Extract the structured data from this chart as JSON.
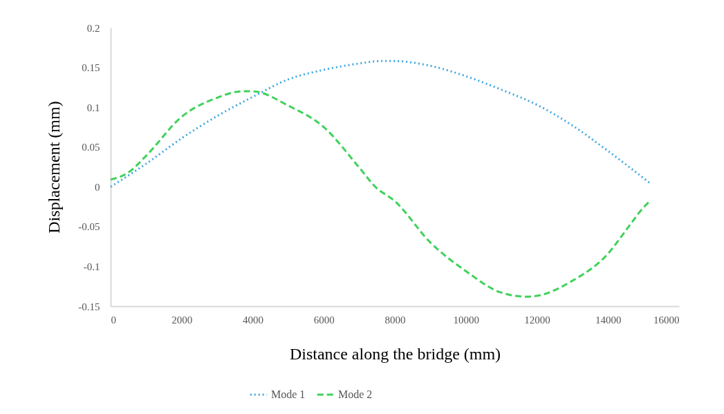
{
  "chart_data": {
    "type": "line",
    "xlabel": "Distance along the bridge (mm)",
    "ylabel": "Displacement (mm)",
    "xlim": [
      0,
      16000
    ],
    "xticks": [
      0,
      2000,
      4000,
      6000,
      8000,
      10000,
      12000,
      14000,
      16000
    ],
    "ylim": [
      -0.15,
      0.2
    ],
    "yticks": [
      -0.15,
      -0.1,
      -0.05,
      0,
      0.05,
      0.1,
      0.15,
      0.2
    ],
    "grid": false,
    "legend": "bottom",
    "marker": "none",
    "series": [
      {
        "name": "Mode 1",
        "color": "#41a8e0",
        "line_style": "dotted",
        "x": [
          0,
          1000,
          2000,
          3000,
          4000,
          5000,
          6000,
          7000,
          7600,
          8000,
          9000,
          10000,
          11000,
          12000,
          13000,
          14000,
          15200
        ],
        "values": [
          0,
          0.029,
          0.061,
          0.089,
          0.113,
          0.135,
          0.147,
          0.155,
          0.158,
          0.158,
          0.152,
          0.139,
          0.122,
          0.103,
          0.077,
          0.045,
          0.004
        ]
      },
      {
        "name": "Mode 2",
        "color": "#3fd15a",
        "line_style": "dashed",
        "x": [
          0,
          500,
          1000,
          2000,
          3000,
          3700,
          4000,
          5000,
          6000,
          7000,
          7450,
          8000,
          9000,
          10000,
          11000,
          11700,
          12000,
          13000,
          14000,
          14500,
          15000,
          15200
        ],
        "values": [
          0.009,
          0.018,
          0.039,
          0.088,
          0.112,
          0.12,
          0.12,
          0.102,
          0.075,
          0.024,
          0,
          -0.018,
          -0.07,
          -0.106,
          -0.133,
          -0.138,
          -0.137,
          -0.118,
          -0.084,
          -0.055,
          -0.026,
          -0.017
        ]
      }
    ]
  }
}
